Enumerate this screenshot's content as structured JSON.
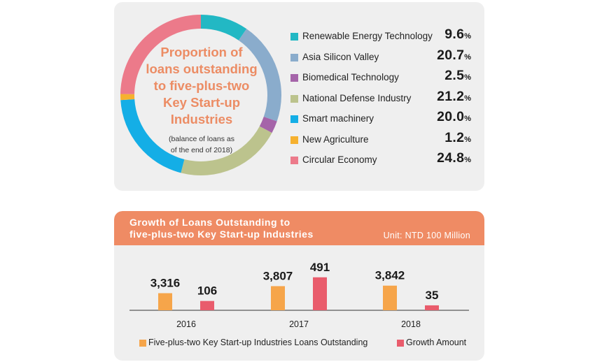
{
  "chart_data": [
    {
      "type": "pie",
      "variant": "donut",
      "title_lines": [
        "Proportion of",
        "loans outstanding",
        "to five-plus-two",
        "Key Start-up",
        "Industries"
      ],
      "subtitle_lines": [
        "(balance of loans as",
        "of the end of 2018)"
      ],
      "slices": [
        {
          "label": "Renewable Energy Technology",
          "value": 9.6,
          "display": "9.6",
          "color": "#22b8c4"
        },
        {
          "label": "Asia Silicon Valley",
          "value": 20.7,
          "display": "20.7",
          "color": "#8aaccc"
        },
        {
          "label": "Biomedical Technology",
          "value": 2.5,
          "display": "2.5",
          "color": "#a564a9"
        },
        {
          "label": "National Defense Industry",
          "value": 21.2,
          "display": "21.2",
          "color": "#bcc38d"
        },
        {
          "label": "Smart machinery",
          "value": 20.0,
          "display": "20.0",
          "color": "#14aee6"
        },
        {
          "label": "New Agriculture",
          "value": 1.2,
          "display": "1.2",
          "color": "#f6b12f"
        },
        {
          "label": "Circular Economy",
          "value": 24.8,
          "display": "24.8",
          "color": "#ec7a8a"
        }
      ],
      "unit_suffix": "%"
    },
    {
      "type": "bar",
      "title_lines": [
        "Growth of Loans Outstanding to",
        "five-plus-two Key Start-up Industries"
      ],
      "unit": "Unit: NTD 100 Million",
      "categories": [
        "2016",
        "2017",
        "2018"
      ],
      "series": [
        {
          "name": "Five-plus-two Key Start-up Industries Loans Outstanding",
          "values": [
            3316,
            3807,
            3842
          ],
          "labels": [
            "3,316",
            "3,807",
            "3,842"
          ],
          "color": "#f6a54a"
        },
        {
          "name": "Growth Amount",
          "values": [
            106,
            491,
            35
          ],
          "labels": [
            "106",
            "491",
            "35"
          ],
          "color": "#e95c6c"
        }
      ],
      "axis_break": true
    }
  ]
}
